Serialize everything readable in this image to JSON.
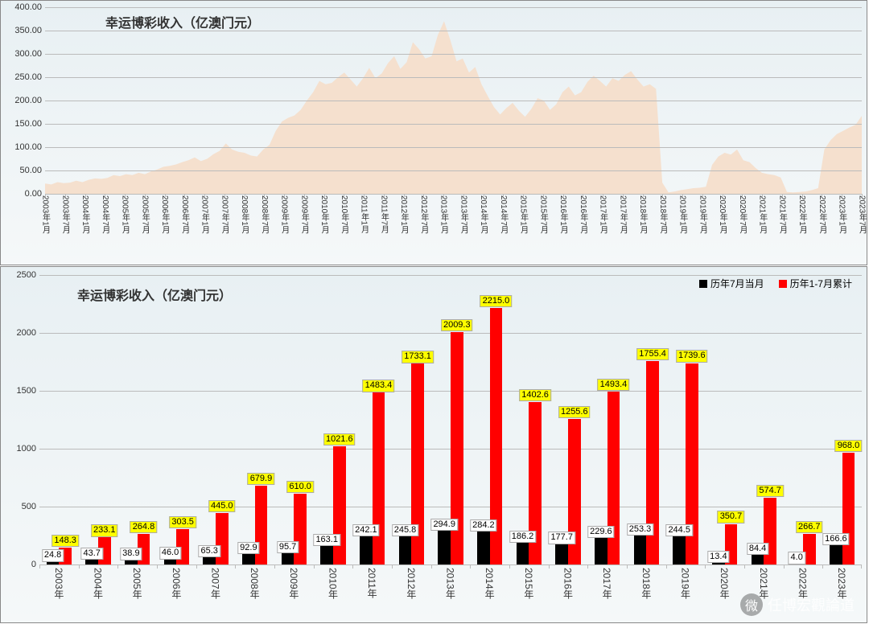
{
  "chart1": {
    "type": "area",
    "title": "幸运博彩收入（亿澳门元）",
    "title_fontsize": 16,
    "background_gradient": [
      "#e8f0f3",
      "#f5f8f9"
    ],
    "area_fill": "#f5e0ce",
    "grid_color": "#bbbbbb",
    "ylim": [
      0,
      400
    ],
    "ytick_step": 50,
    "yticks": [
      "0.00",
      "50.00",
      "100.00",
      "150.00",
      "200.00",
      "250.00",
      "300.00",
      "350.00",
      "400.00"
    ],
    "xlabels": [
      "2003年1月",
      "2003年7月",
      "2004年1月",
      "2004年7月",
      "2005年1月",
      "2005年7月",
      "2006年1月",
      "2006年7月",
      "2007年1月",
      "2007年7月",
      "2008年1月",
      "2008年7月",
      "2009年1月",
      "2009年7月",
      "2010年1月",
      "2010年7月",
      "2011年1月",
      "2011年7月",
      "2012年1月",
      "2012年7月",
      "2013年1月",
      "2013年7月",
      "2014年1月",
      "2014年7月",
      "2015年1月",
      "2015年7月",
      "2016年1月",
      "2016年7月",
      "2017年1月",
      "2017年7月",
      "2018年1月",
      "2018年7月",
      "2019年1月",
      "2019年7月",
      "2020年1月",
      "2020年7月",
      "2021年1月",
      "2021年7月",
      "2022年1月",
      "2022年7月",
      "2023年1月",
      "2023年7月"
    ],
    "series": [
      22,
      20,
      25,
      23,
      24,
      28,
      25,
      30,
      33,
      32,
      34,
      40,
      38,
      42,
      40,
      45,
      42,
      48,
      52,
      58,
      60,
      63,
      68,
      72,
      78,
      70,
      75,
      85,
      92,
      108,
      95,
      90,
      88,
      82,
      80,
      95,
      105,
      135,
      155,
      163,
      168,
      180,
      200,
      218,
      242,
      235,
      238,
      250,
      260,
      245,
      230,
      248,
      270,
      248,
      258,
      280,
      295,
      268,
      282,
      325,
      310,
      290,
      295,
      340,
      370,
      330,
      284,
      290,
      260,
      272,
      235,
      210,
      186,
      170,
      184,
      195,
      178,
      165,
      182,
      205,
      200,
      180,
      192,
      218,
      230,
      211,
      218,
      240,
      253,
      242,
      230,
      248,
      242,
      255,
      263,
      245,
      230,
      235,
      225,
      24,
      3,
      5,
      8,
      10,
      12,
      13,
      15,
      62,
      80,
      88,
      84,
      95,
      72,
      68,
      55,
      45,
      42,
      40,
      35,
      4,
      3,
      4,
      5,
      8,
      12,
      95,
      115,
      128,
      135,
      142,
      148,
      167
    ]
  },
  "chart2": {
    "type": "grouped-bar",
    "title": "幸运博彩收入（亿澳门元）",
    "title_fontsize": 16,
    "background_gradient": [
      "#e8f0f3",
      "#f5f8f9"
    ],
    "grid_color": "#bbbbbb",
    "ylim": [
      0,
      2500
    ],
    "ytick_step": 500,
    "yticks": [
      "0",
      "500",
      "1000",
      "1500",
      "2000",
      "2500"
    ],
    "categories": [
      "2003年",
      "2004年",
      "2005年",
      "2006年",
      "2007年",
      "2008年",
      "2009年",
      "2010年",
      "2011年",
      "2012年",
      "2013年",
      "2014年",
      "2015年",
      "2016年",
      "2017年",
      "2018年",
      "2019年",
      "2020年",
      "2021年",
      "2022年",
      "2023年"
    ],
    "legend": [
      {
        "label": "历年7月当月",
        "color": "#000000"
      },
      {
        "label": "历年1-7月累计",
        "color": "#ff0000"
      }
    ],
    "series_black": [
      24.8,
      43.7,
      38.9,
      46.0,
      65.3,
      92.9,
      95.7,
      163.1,
      242.1,
      245.8,
      294.9,
      284.2,
      186.2,
      177.7,
      229.6,
      253.3,
      244.5,
      13.4,
      84.4,
      4.0,
      166.6
    ],
    "series_red": [
      148.3,
      233.1,
      264.8,
      303.5,
      445.0,
      679.9,
      610.0,
      1021.6,
      1483.4,
      1733.1,
      2009.3,
      2215.0,
      1402.6,
      1255.6,
      1493.4,
      1755.4,
      1739.6,
      350.7,
      574.7,
      266.7,
      968.0
    ],
    "bar_colors": [
      "#000000",
      "#ff0000"
    ],
    "bar_width": 0.32,
    "data_label_bg": "#ffff00",
    "data_label_fontsize": 11
  },
  "watermark": {
    "icon_text": "微",
    "text": "任博宏觀論道"
  }
}
